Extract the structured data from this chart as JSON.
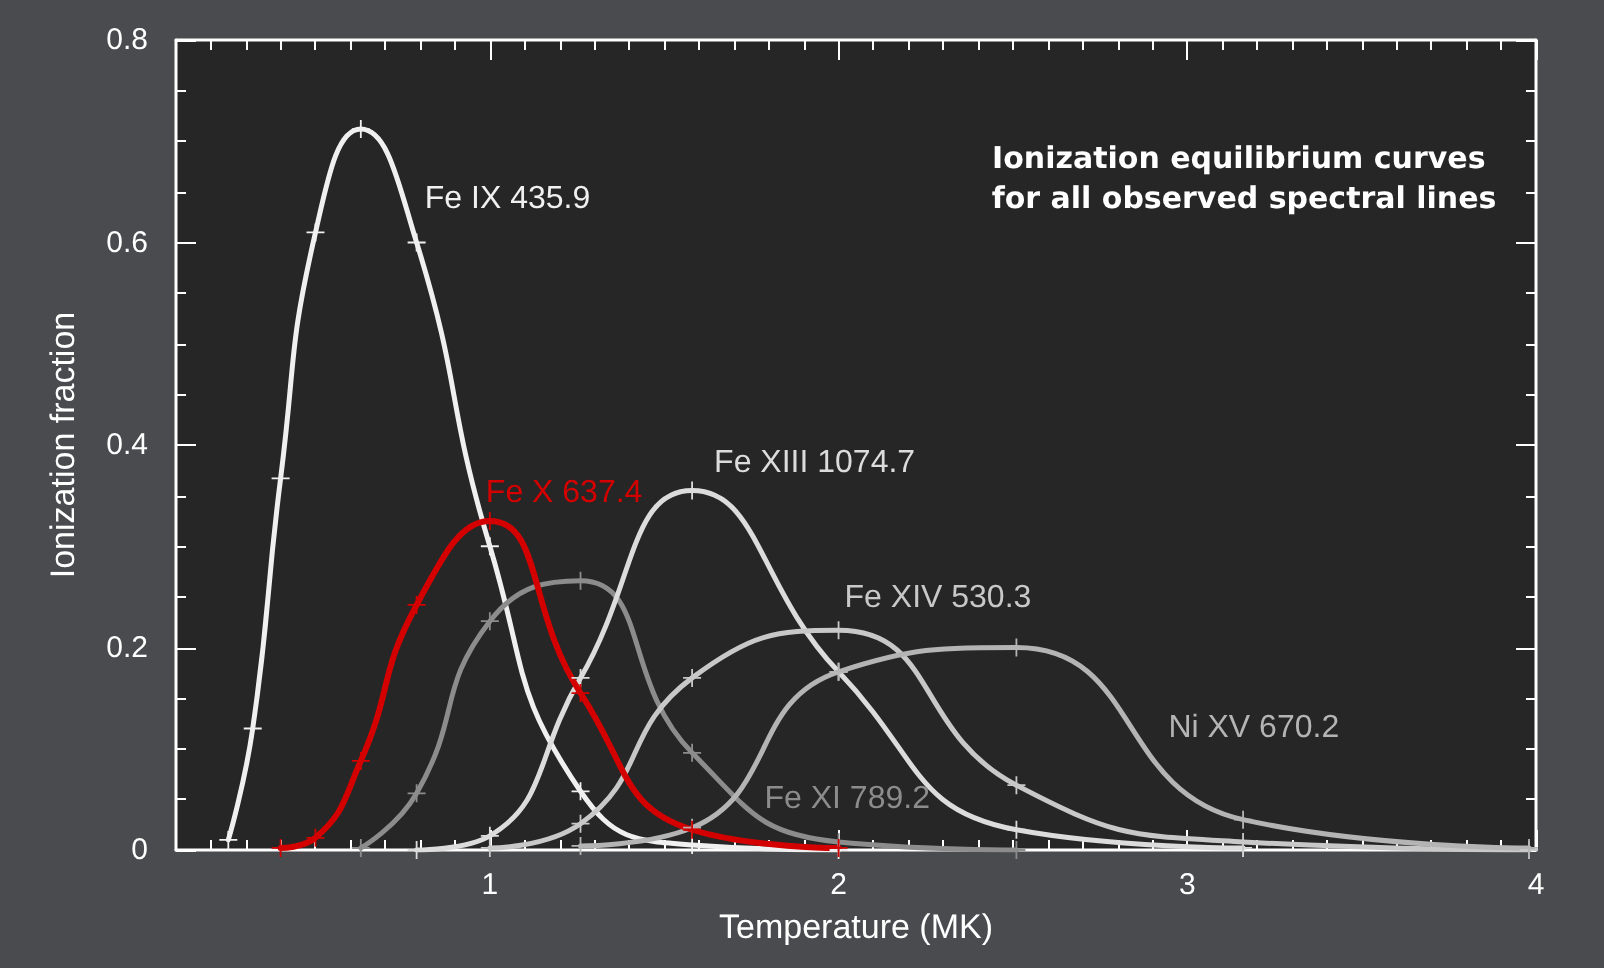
{
  "chart_data": {
    "type": "line",
    "title": "Ionization equilibrium curves for all observed spectral lines",
    "xlabel": "Temperature (MK)",
    "ylabel": "Ionization fraction",
    "xlim": [
      0.1,
      4
    ],
    "xticks": [
      1,
      2,
      3,
      4
    ],
    "ylim": [
      0,
      0.8
    ],
    "yticks": [
      0,
      0.2,
      0.4,
      0.6,
      0.8
    ],
    "grid": false,
    "legend": false,
    "marker": "cross",
    "line_style": "solid",
    "series": [
      {
        "name": "Fe IX 435.9",
        "color": "#f0f0f0",
        "x": [
          0.25,
          0.32,
          0.4,
          0.5,
          0.63,
          0.79,
          1.0,
          1.26,
          1.58,
          2.0
        ],
        "values": [
          0.01,
          0.12,
          0.367,
          0.61,
          0.712,
          0.6,
          0.3,
          0.058,
          0.005,
          0
        ]
      },
      {
        "name": "Fe XI 789.2",
        "color": "#8c8c8c",
        "x": [
          0.63,
          0.79,
          1.0,
          1.26,
          1.58,
          2.0,
          2.51
        ],
        "values": [
          0.002,
          0.056,
          0.226,
          0.266,
          0.096,
          0.008,
          0
        ]
      },
      {
        "name": "Fe XIII 1074.7",
        "color": "#dcdcdc",
        "x": [
          0.79,
          1.0,
          1.26,
          1.58,
          2.0,
          2.51,
          3.16
        ],
        "values": [
          0,
          0.014,
          0.17,
          0.355,
          0.176,
          0.02,
          0.002
        ]
      },
      {
        "name": "Fe XIV 530.3",
        "color": "#c8c8c8",
        "x": [
          1.0,
          1.26,
          1.58,
          2.0,
          2.51,
          3.16,
          3.98
        ],
        "values": [
          0.002,
          0.026,
          0.17,
          0.217,
          0.064,
          0.008,
          0
        ]
      },
      {
        "name": "Ni XV 670.2",
        "color": "#b4b4b4",
        "x": [
          1.26,
          1.58,
          2.0,
          2.51,
          3.16,
          3.98
        ],
        "values": [
          0.004,
          0.022,
          0.176,
          0.2,
          0.03,
          0.002
        ]
      },
      {
        "name": "Fe X 637.4",
        "color": "#d40000",
        "x": [
          0.4,
          0.5,
          0.63,
          0.79,
          1.0,
          1.26,
          1.58,
          2.0
        ],
        "values": [
          0.002,
          0.012,
          0.088,
          0.242,
          0.325,
          0.155,
          0.02,
          0.002
        ]
      }
    ]
  }
}
